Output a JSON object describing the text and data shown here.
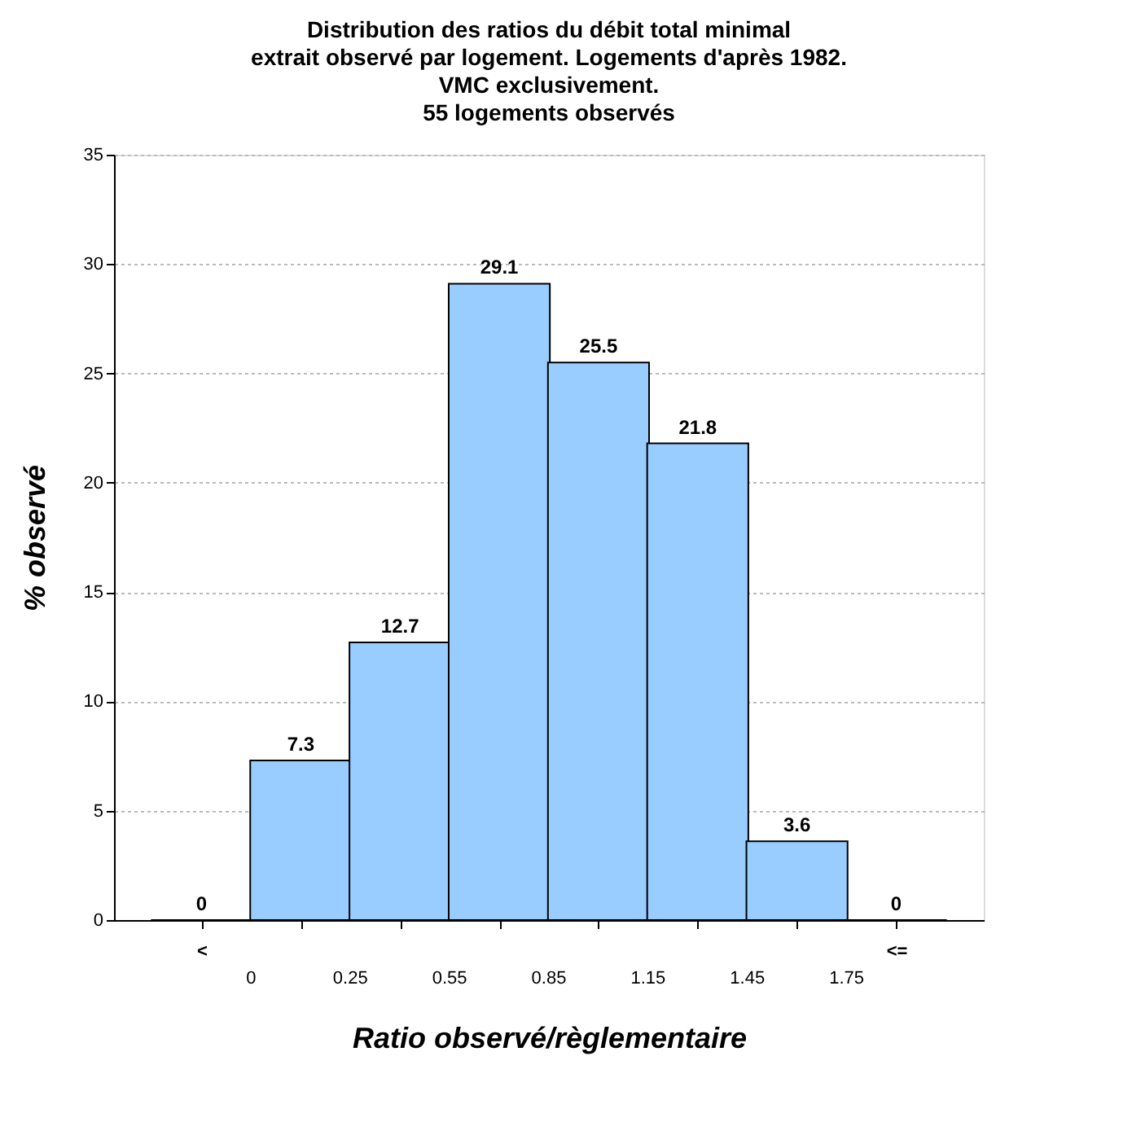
{
  "chart_data": {
    "type": "bar",
    "title": [
      "Distribution des ratios du débit total minimal",
      "extrait observé par logement. Logements d'après 1982.",
      "VMC exclusivement.",
      "55 logements observés"
    ],
    "xlabel": "Ratio observé/règlementaire",
    "ylabel": "% observé",
    "categories": [
      "<",
      null,
      null,
      null,
      null,
      null,
      null,
      "<="
    ],
    "values": [
      0,
      7.3,
      12.7,
      29.1,
      25.5,
      21.8,
      3.6,
      0
    ],
    "color": "#99ccff",
    "annotations": [
      "0",
      "0.25",
      "0.55",
      "0.85",
      "1.15",
      "1.45",
      "1.75"
    ],
    "ylim": [
      0,
      35
    ],
    "yticks": [
      0,
      5,
      10,
      15,
      20,
      25,
      30,
      35
    ],
    "grid": "y",
    "data_labels": true
  }
}
